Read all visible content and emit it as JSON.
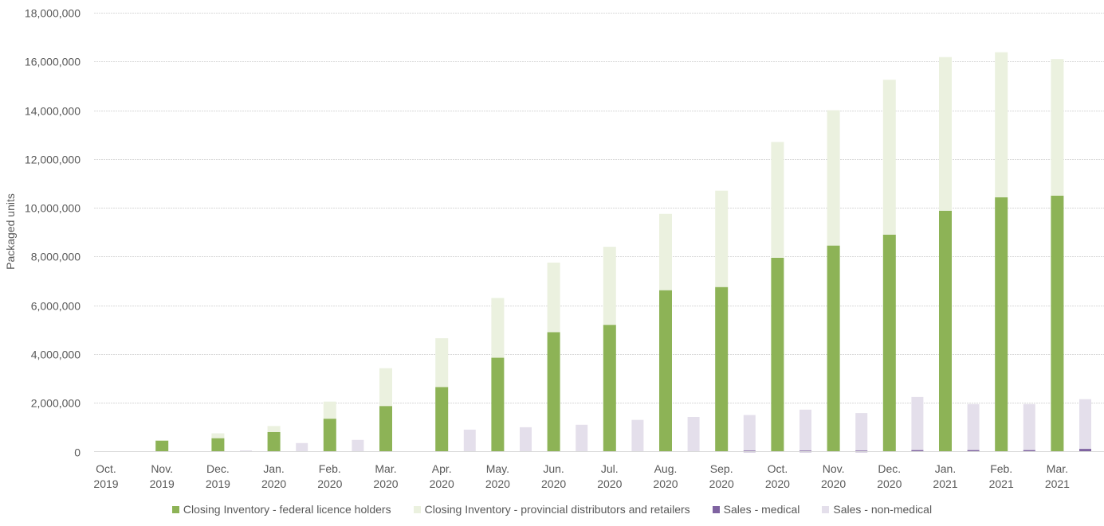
{
  "chart_data": {
    "type": "bar",
    "title": "",
    "xlabel": "",
    "ylabel": "Packaged units",
    "ylim": [
      0,
      18000000
    ],
    "yticks": [
      "0",
      "2,000,000",
      "4,000,000",
      "6,000,000",
      "8,000,000",
      "10,000,000",
      "12,000,000",
      "14,000,000",
      "16,000,000",
      "18,000,000"
    ],
    "ytick_values": [
      0,
      2000000,
      4000000,
      6000000,
      8000000,
      10000000,
      12000000,
      14000000,
      16000000,
      18000000
    ],
    "categories": [
      [
        "Oct.",
        "2019"
      ],
      [
        "Nov.",
        "2019"
      ],
      [
        "Dec.",
        "2019"
      ],
      [
        "Jan.",
        "2020"
      ],
      [
        "Feb.",
        "2020"
      ],
      [
        "Mar.",
        "2020"
      ],
      [
        "Apr.",
        "2020"
      ],
      [
        "May.",
        "2020"
      ],
      [
        "Jun.",
        "2020"
      ],
      [
        "Jul.",
        "2020"
      ],
      [
        "Aug.",
        "2020"
      ],
      [
        "Sep.",
        "2020"
      ],
      [
        "Oct.",
        "2020"
      ],
      [
        "Nov.",
        "2020"
      ],
      [
        "Dec.",
        "2020"
      ],
      [
        "Jan.",
        "2021"
      ],
      [
        "Feb.",
        "2021"
      ],
      [
        "Mar.",
        "2021"
      ]
    ],
    "grid": true,
    "legend_position": "bottom",
    "stacked_series": [
      {
        "name": "Closing Inventory - federal licence holders",
        "color": "#8db356",
        "values": [
          0,
          450000,
          550000,
          800000,
          1350000,
          1870000,
          2650000,
          3850000,
          4900000,
          5200000,
          6620000,
          6750000,
          7950000,
          8450000,
          8900000,
          9880000,
          10430000,
          10500000
        ]
      },
      {
        "name": "Closing Inventory - provincial distributors and retailers",
        "color": "#ebf1df",
        "values": [
          0,
          20000,
          200000,
          250000,
          700000,
          1550000,
          2000000,
          2450000,
          2850000,
          3200000,
          3130000,
          3950000,
          4750000,
          5550000,
          6350000,
          6300000,
          5950000,
          5600000
        ]
      }
    ],
    "side_series": [
      {
        "name": "Sales - medical",
        "color": "#7f63a1",
        "values": [
          0,
          0,
          0,
          0,
          0,
          0,
          0,
          0,
          0,
          0,
          0,
          0,
          40000,
          40000,
          40000,
          60000,
          60000,
          60000,
          110000
        ]
      },
      {
        "name": "Sales - non-medical",
        "color": "#e4dfeb",
        "values": [
          0,
          0,
          0,
          50000,
          350000,
          480000,
          0,
          900000,
          1000000,
          1100000,
          1300000,
          1420000,
          1500000,
          1720000,
          1580000,
          2240000,
          1950000,
          1950000,
          2150000
        ]
      }
    ],
    "side_note": "side_series values are indexed by gap position: index i sits between category i-1 and category i (index 18 after the last category)."
  }
}
